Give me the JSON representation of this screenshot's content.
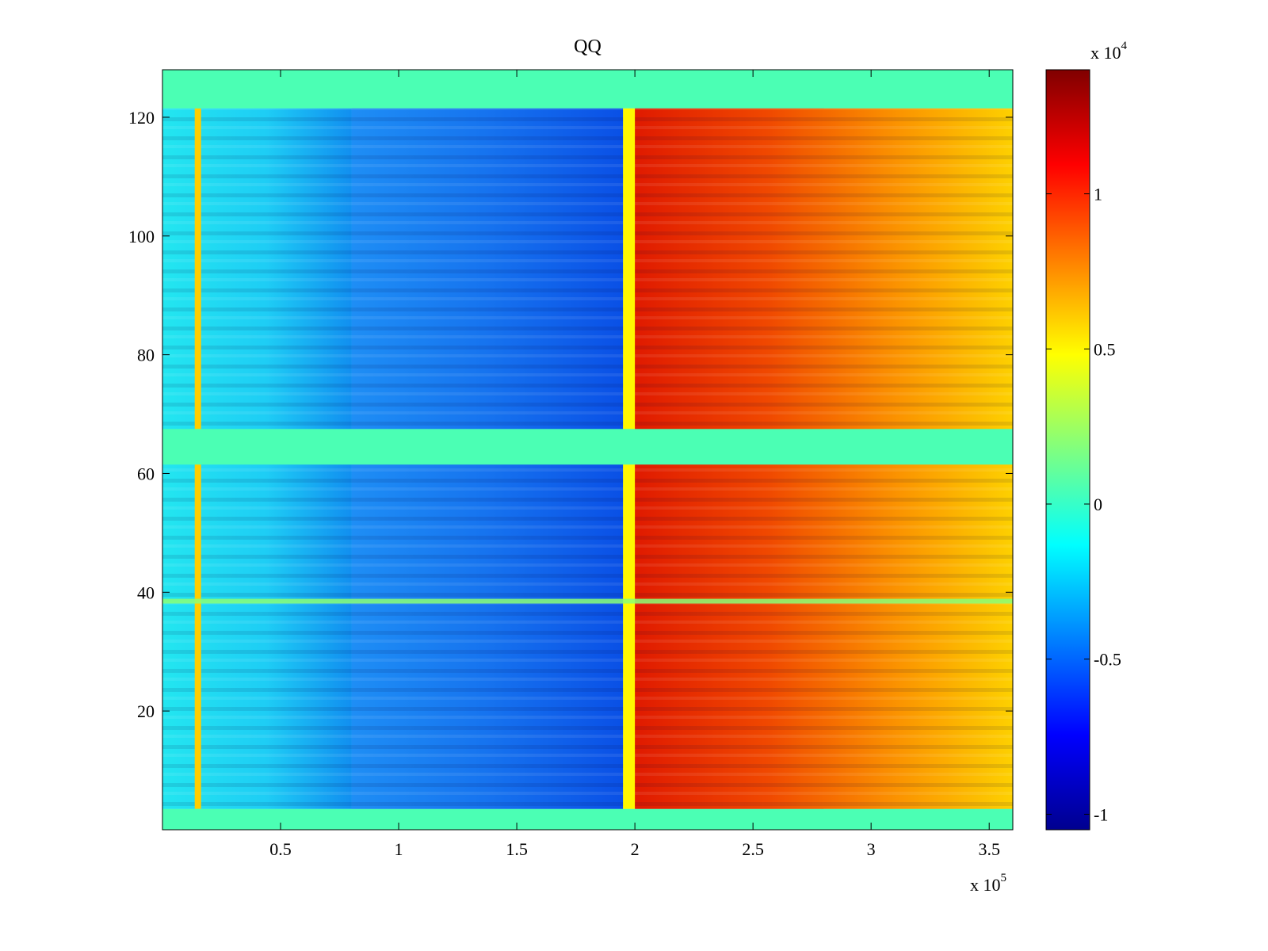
{
  "chart_data": {
    "type": "heatmap",
    "title": "QQ",
    "x_range": [
      0,
      360000
    ],
    "y_range": [
      0,
      128
    ],
    "x_ticks": [
      50000,
      100000,
      150000,
      200000,
      250000,
      300000,
      350000
    ],
    "x_tick_labels": [
      "0.5",
      "1",
      "1.5",
      "2",
      "2.5",
      "3",
      "3.5"
    ],
    "x_exponent": {
      "base": "x 10",
      "power": "5"
    },
    "y_ticks": [
      20,
      40,
      60,
      80,
      100,
      120
    ],
    "y_tick_labels": [
      "20",
      "40",
      "60",
      "80",
      "100",
      "120"
    ],
    "colorbar": {
      "colormap": "jet",
      "range": [
        -10500,
        14000
      ],
      "ticks": [
        -10000,
        -5000,
        0,
        5000,
        10000
      ],
      "tick_labels": [
        "-1",
        "-0.5",
        "0",
        "0.5",
        "1"
      ],
      "exponent": {
        "base": "x 10",
        "power": "4"
      }
    },
    "regions": [
      {
        "description": "fill rows",
        "y": [
          [
            0,
            3.5
          ],
          [
            61.5,
            67.5
          ],
          [
            121.5,
            128
          ]
        ],
        "value": 500
      },
      {
        "x": [
          0,
          80000
        ],
        "y": [
          3.5,
          121.5
        ],
        "value": -2000
      },
      {
        "x": [
          80000,
          195000
        ],
        "y": [
          3.5,
          121.5
        ],
        "value": -6500
      },
      {
        "x": [
          195000,
          200000
        ],
        "y": [
          3.5,
          121.5
        ],
        "value": 5000
      },
      {
        "x": [
          200000,
          280000
        ],
        "y": [
          3.5,
          121.5
        ],
        "value": 11500
      },
      {
        "x": [
          280000,
          360000
        ],
        "y": [
          3.5,
          121.5
        ],
        "value": 7500
      }
    ],
    "vertical_band": {
      "x": 15000,
      "value": 6000
    },
    "horizontal_band": {
      "y": 38.5,
      "value": 2000
    }
  }
}
